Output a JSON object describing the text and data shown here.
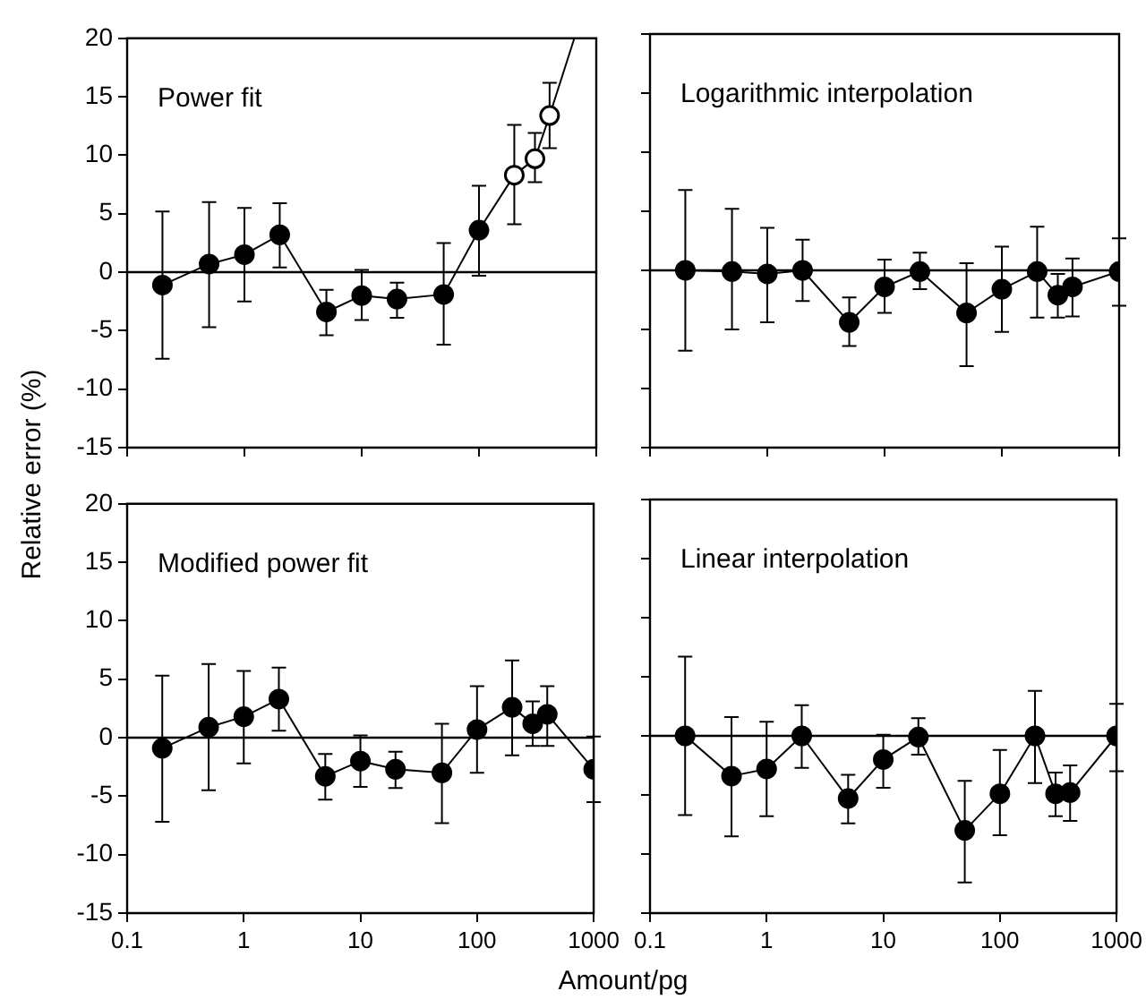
{
  "chart_data": [
    {
      "type": "line",
      "title": "Power fit",
      "x": [
        0.2,
        0.5,
        1,
        2,
        5,
        10,
        20,
        50,
        100,
        200,
        300,
        400
      ],
      "log": "x",
      "xlim": [
        0.1,
        1000
      ],
      "xticks": [
        0.1,
        1,
        10,
        100,
        1000
      ],
      "ylim": [
        -15,
        20
      ],
      "yticks": [
        -15,
        -10,
        -5,
        0,
        5,
        10,
        15,
        20
      ],
      "grid": false,
      "legend": false,
      "marker": "circle",
      "tick_labels": "y",
      "ref_lines": [
        {
          "axis": "y",
          "value": 0,
          "color": "#000000"
        }
      ],
      "series": [
        {
          "color": "#000000",
          "colors": [
            "#000000",
            "#000000",
            "#000000",
            "#000000",
            "#000000",
            "#000000",
            "#000000",
            "#000000",
            "#000000",
            "#ffffff",
            "#ffffff",
            "#ffffff"
          ],
          "values": [
            -1.1,
            0.7,
            1.5,
            3.2,
            -3.4,
            -2.0,
            -2.3,
            -1.9,
            3.6,
            8.3,
            9.7,
            13.4
          ],
          "errors": [
            [
              -7.4,
              5.2
            ],
            [
              -4.7,
              6.0
            ],
            [
              -2.5,
              5.5
            ],
            [
              0.4,
              5.9
            ],
            [
              -5.4,
              -1.5
            ],
            [
              -4.1,
              0.2
            ],
            [
              -3.9,
              -0.9
            ],
            [
              -6.2,
              2.5
            ],
            [
              -0.3,
              7.4
            ],
            [
              4.1,
              12.6
            ],
            [
              7.7,
              11.9
            ],
            [
              10.6,
              16.2
            ]
          ]
        },
        {
          "type": "line",
          "marker": "none",
          "color": "#000000",
          "x": [
            400,
            650
          ],
          "values": [
            13.4,
            20
          ]
        }
      ]
    },
    {
      "type": "line",
      "title": "Logarithmic interpolation",
      "x": [
        0.2,
        0.5,
        1,
        2,
        5,
        10,
        20,
        50,
        100,
        200,
        300,
        400,
        1000
      ],
      "log": "x",
      "xlim": [
        0.1,
        1000
      ],
      "xticks": [
        0.1,
        1,
        10,
        100,
        1000
      ],
      "ylim": [
        -15,
        20
      ],
      "yticks": [
        -15,
        -10,
        -5,
        0,
        5,
        10,
        15,
        20
      ],
      "grid": false,
      "legend": false,
      "marker": "circle",
      "tick_labels": false,
      "ref_lines": [
        {
          "axis": "y",
          "value": 0,
          "color": "#000000"
        }
      ],
      "series": [
        {
          "color": "#000000",
          "values": [
            0,
            -0.1,
            -0.3,
            0,
            -4.4,
            -1.4,
            -0.1,
            -3.6,
            -1.6,
            -0.1,
            -2.1,
            -1.4,
            -0.1
          ],
          "errors": [
            [
              -6.8,
              6.8
            ],
            [
              -5.0,
              5.2
            ],
            [
              -4.4,
              3.6
            ],
            [
              -2.6,
              2.6
            ],
            [
              -6.4,
              -2.3
            ],
            [
              -3.6,
              0.9
            ],
            [
              -1.6,
              1.5
            ],
            [
              -8.1,
              0.6
            ],
            [
              -5.2,
              2.0
            ],
            [
              -4.0,
              3.7
            ],
            [
              -4.0,
              -0.3
            ],
            [
              -3.9,
              1.0
            ],
            [
              -3.0,
              2.7
            ]
          ]
        }
      ]
    },
    {
      "type": "line",
      "title": "Modified power fit",
      "xlabel": "Amount/pg",
      "ylabel": "Relative error (%)",
      "x": [
        0.2,
        0.5,
        1,
        2,
        5,
        10,
        20,
        50,
        100,
        200,
        300,
        400,
        1000
      ],
      "log": "x",
      "xlim": [
        0.1,
        1000
      ],
      "xticks": [
        0.1,
        1,
        10,
        100,
        1000
      ],
      "ylim": [
        -15,
        20
      ],
      "yticks": [
        -15,
        -10,
        -5,
        0,
        5,
        10,
        15,
        20
      ],
      "grid": false,
      "legend": false,
      "marker": "circle",
      "ref_lines": [
        {
          "axis": "y",
          "value": 0,
          "color": "#000000"
        }
      ],
      "series": [
        {
          "color": "#000000",
          "values": [
            -0.9,
            0.9,
            1.8,
            3.3,
            -3.3,
            -2.0,
            -2.7,
            -3.0,
            0.7,
            2.6,
            1.2,
            2.0,
            -2.7
          ],
          "errors": [
            [
              -7.2,
              5.3
            ],
            [
              -4.5,
              6.3
            ],
            [
              -2.2,
              5.7
            ],
            [
              0.6,
              6.0
            ],
            [
              -5.3,
              -1.4
            ],
            [
              -4.2,
              0.2
            ],
            [
              -4.3,
              -1.2
            ],
            [
              -7.3,
              1.2
            ],
            [
              -3.0,
              4.4
            ],
            [
              -1.5,
              6.6
            ],
            [
              -0.7,
              3.1
            ],
            [
              -0.7,
              4.4
            ],
            [
              -5.5,
              0.1
            ]
          ]
        }
      ]
    },
    {
      "type": "line",
      "title": "Linear interpolation",
      "x": [
        0.2,
        0.5,
        1,
        2,
        5,
        10,
        20,
        50,
        100,
        200,
        300,
        400,
        1000
      ],
      "log": "x",
      "xlim": [
        0.1,
        1000
      ],
      "xticks": [
        0.1,
        1,
        10,
        100,
        1000
      ],
      "ylim": [
        -15,
        20
      ],
      "yticks": [
        -15,
        -10,
        -5,
        0,
        5,
        10,
        15,
        20
      ],
      "grid": false,
      "legend": false,
      "marker": "circle",
      "tick_labels": "x",
      "ref_lines": [
        {
          "axis": "y",
          "value": 0,
          "color": "#000000"
        }
      ],
      "series": [
        {
          "color": "#000000",
          "values": [
            0,
            -3.4,
            -2.8,
            0,
            -5.3,
            -2.0,
            -0.1,
            -8.0,
            -4.9,
            0,
            -4.9,
            -4.8,
            0
          ],
          "errors": [
            [
              -6.7,
              6.7
            ],
            [
              -8.5,
              1.6
            ],
            [
              -6.8,
              1.2
            ],
            [
              -2.7,
              2.6
            ],
            [
              -7.4,
              -3.3
            ],
            [
              -4.4,
              0.1
            ],
            [
              -1.6,
              1.5
            ],
            [
              -12.4,
              -3.8
            ],
            [
              -8.4,
              -1.2
            ],
            [
              -4.0,
              3.8
            ],
            [
              -6.8,
              -3.1
            ],
            [
              -7.2,
              -2.5
            ],
            [
              -3.0,
              2.7
            ]
          ]
        }
      ]
    }
  ]
}
